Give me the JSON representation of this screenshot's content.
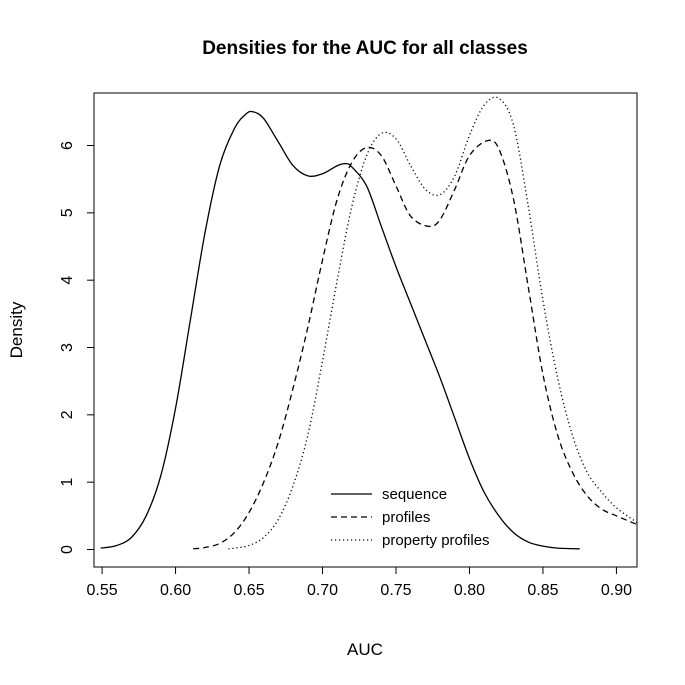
{
  "chart_data": {
    "type": "line",
    "title": "Densities for the AUC for all classes",
    "xlabel": "AUC",
    "ylabel": "Density",
    "xlim": [
      0.5445,
      0.914
    ],
    "ylim": [
      -0.26,
      6.78
    ],
    "x_ticks": [
      0.55,
      0.6,
      0.65,
      0.7,
      0.75,
      0.8,
      0.85,
      0.9
    ],
    "x_tick_labels": [
      "0.55",
      "0.60",
      "0.65",
      "0.70",
      "0.75",
      "0.80",
      "0.85",
      "0.90"
    ],
    "y_ticks": [
      0,
      1,
      2,
      3,
      4,
      5,
      6
    ],
    "y_tick_labels": [
      "0",
      "1",
      "2",
      "3",
      "4",
      "5",
      "6"
    ],
    "grid": false,
    "legend_position": "bottom-center",
    "series": [
      {
        "name": "sequence",
        "line_style": "solid",
        "color": "#000000",
        "points": [
          [
            0.549,
            0.02
          ],
          [
            0.56,
            0.06
          ],
          [
            0.57,
            0.18
          ],
          [
            0.58,
            0.5
          ],
          [
            0.59,
            1.1
          ],
          [
            0.6,
            2.1
          ],
          [
            0.61,
            3.4
          ],
          [
            0.62,
            4.7
          ],
          [
            0.63,
            5.7
          ],
          [
            0.64,
            6.25
          ],
          [
            0.648,
            6.47
          ],
          [
            0.653,
            6.5
          ],
          [
            0.66,
            6.4
          ],
          [
            0.67,
            6.05
          ],
          [
            0.68,
            5.7
          ],
          [
            0.69,
            5.55
          ],
          [
            0.7,
            5.58
          ],
          [
            0.71,
            5.7
          ],
          [
            0.716,
            5.73
          ],
          [
            0.72,
            5.68
          ],
          [
            0.73,
            5.4
          ],
          [
            0.74,
            4.8
          ],
          [
            0.75,
            4.2
          ],
          [
            0.76,
            3.65
          ],
          [
            0.77,
            3.1
          ],
          [
            0.78,
            2.55
          ],
          [
            0.79,
            1.95
          ],
          [
            0.8,
            1.35
          ],
          [
            0.81,
            0.85
          ],
          [
            0.82,
            0.5
          ],
          [
            0.83,
            0.25
          ],
          [
            0.84,
            0.11
          ],
          [
            0.85,
            0.05
          ],
          [
            0.86,
            0.02
          ],
          [
            0.875,
            0.01
          ]
        ]
      },
      {
        "name": "profiles",
        "line_style": "dashed",
        "color": "#000000",
        "points": [
          [
            0.612,
            0.01
          ],
          [
            0.62,
            0.03
          ],
          [
            0.63,
            0.09
          ],
          [
            0.64,
            0.25
          ],
          [
            0.65,
            0.55
          ],
          [
            0.66,
            1.0
          ],
          [
            0.67,
            1.6
          ],
          [
            0.68,
            2.4
          ],
          [
            0.69,
            3.3
          ],
          [
            0.7,
            4.3
          ],
          [
            0.71,
            5.2
          ],
          [
            0.72,
            5.75
          ],
          [
            0.73,
            5.97
          ],
          [
            0.74,
            5.85
          ],
          [
            0.75,
            5.4
          ],
          [
            0.76,
            4.95
          ],
          [
            0.772,
            4.8
          ],
          [
            0.78,
            4.9
          ],
          [
            0.79,
            5.35
          ],
          [
            0.8,
            5.85
          ],
          [
            0.812,
            6.07
          ],
          [
            0.82,
            5.95
          ],
          [
            0.83,
            5.2
          ],
          [
            0.84,
            3.9
          ],
          [
            0.85,
            2.6
          ],
          [
            0.86,
            1.7
          ],
          [
            0.87,
            1.15
          ],
          [
            0.88,
            0.8
          ],
          [
            0.89,
            0.6
          ],
          [
            0.9,
            0.5
          ],
          [
            0.914,
            0.37
          ]
        ]
      },
      {
        "name": "property profiles",
        "line_style": "dotted",
        "color": "#000000",
        "points": [
          [
            0.636,
            0.01
          ],
          [
            0.64,
            0.02
          ],
          [
            0.65,
            0.06
          ],
          [
            0.66,
            0.18
          ],
          [
            0.67,
            0.45
          ],
          [
            0.68,
            0.95
          ],
          [
            0.69,
            1.7
          ],
          [
            0.7,
            2.8
          ],
          [
            0.71,
            4.0
          ],
          [
            0.72,
            5.1
          ],
          [
            0.73,
            5.85
          ],
          [
            0.74,
            6.18
          ],
          [
            0.75,
            6.1
          ],
          [
            0.76,
            5.7
          ],
          [
            0.77,
            5.35
          ],
          [
            0.78,
            5.27
          ],
          [
            0.79,
            5.55
          ],
          [
            0.8,
            6.15
          ],
          [
            0.81,
            6.6
          ],
          [
            0.82,
            6.7
          ],
          [
            0.83,
            6.3
          ],
          [
            0.84,
            5.1
          ],
          [
            0.85,
            3.7
          ],
          [
            0.86,
            2.55
          ],
          [
            0.87,
            1.7
          ],
          [
            0.88,
            1.15
          ],
          [
            0.89,
            0.85
          ],
          [
            0.9,
            0.62
          ],
          [
            0.914,
            0.4
          ]
        ]
      }
    ]
  }
}
